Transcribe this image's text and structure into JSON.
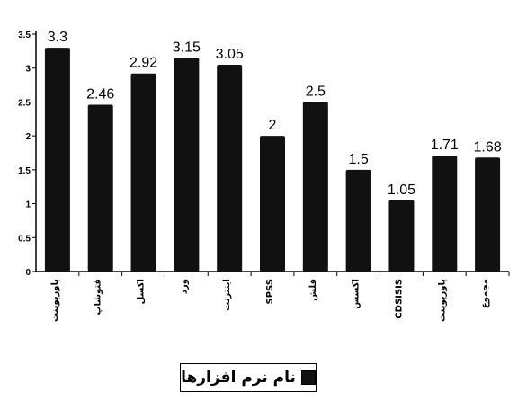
{
  "chart_data": {
    "type": "bar",
    "categories": [
      "پاورپوینت",
      "فتوشاپ",
      "اکسل",
      "ورد",
      "اینترنت",
      "SPSS",
      "فلش",
      "اکسس",
      "CDSISIS",
      "پاورپوینت",
      "مجموع"
    ],
    "values": [
      3.3,
      2.46,
      2.92,
      3.15,
      3.05,
      2,
      2.5,
      1.5,
      1.05,
      1.71,
      1.68
    ],
    "value_labels": [
      "3.3",
      "2.46",
      "2.92",
      "3.15",
      "3.05",
      "2",
      "2.5",
      "1.5",
      "1.05",
      "1.71",
      "1.68"
    ],
    "ylim": [
      0,
      3.5
    ],
    "yticks": [
      "0",
      "0.5",
      "1",
      "1.5",
      "2",
      "2.5",
      "3",
      "3.5"
    ],
    "grid": false,
    "legend_placement": "bottom",
    "series": [
      {
        "name": "نام نرم افزارها",
        "color": "#111111"
      }
    ],
    "colors": {
      "bar": "#111111",
      "axis": "#000000"
    }
  }
}
